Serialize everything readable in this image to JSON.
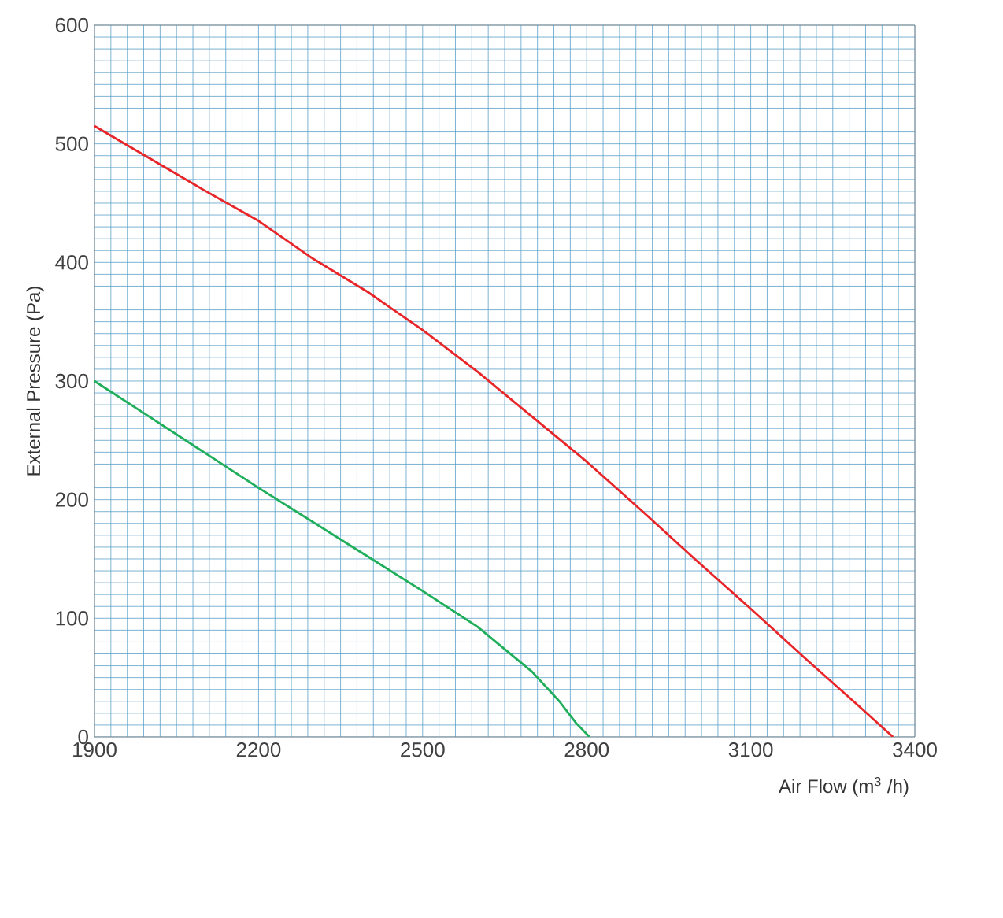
{
  "chart_data": {
    "type": "line",
    "xlabel": "Air Flow (m$^{3}$ /h)",
    "ylabel": "External Pressure (Pa)",
    "xlim": [
      1900,
      3400
    ],
    "ylim": [
      0,
      600
    ],
    "xticks": [
      1900,
      {
        "value": 1930,
        "label": null
      },
      {
        "value": 1960,
        "label": null
      },
      {
        "value": 1990,
        "label": null
      },
      {
        "value": 2020,
        "label": null
      },
      {
        "value": 2050,
        "label": null
      },
      {
        "value": 2080,
        "label": null
      },
      {
        "value": 2110,
        "label": null
      },
      {
        "value": 2140,
        "label": null
      },
      {
        "value": 2170,
        "label": null
      },
      2200,
      {
        "value": 2230,
        "label": null
      },
      {
        "value": 2260,
        "label": null
      },
      {
        "value": 2290,
        "label": null
      },
      {
        "value": 2320,
        "label": null
      },
      {
        "value": 2350,
        "label": null
      },
      {
        "value": 2380,
        "label": null
      },
      {
        "value": 2410,
        "label": null
      },
      {
        "value": 2440,
        "label": null
      },
      {
        "value": 2470,
        "label": null
      },
      2500,
      {
        "value": 2530,
        "label": null
      },
      {
        "value": 2560,
        "label": null
      },
      {
        "value": 2590,
        "label": null
      },
      {
        "value": 2620,
        "label": null
      },
      {
        "value": 2650,
        "label": null
      },
      {
        "value": 2680,
        "label": null
      },
      {
        "value": 2710,
        "label": null
      },
      {
        "value": 2740,
        "label": null
      },
      {
        "value": 2770,
        "label": null
      },
      2800,
      {
        "value": 2830,
        "label": null
      },
      {
        "value": 2860,
        "label": null
      },
      {
        "value": 2890,
        "label": null
      },
      {
        "value": 2920,
        "label": null
      },
      {
        "value": 2950,
        "label": null
      },
      {
        "value": 2980,
        "label": null
      },
      {
        "value": 3010,
        "label": null
      },
      {
        "value": 3040,
        "label": null
      },
      {
        "value": 3070,
        "label": null
      },
      3100,
      {
        "value": 3130,
        "label": null
      },
      {
        "value": 3160,
        "label": null
      },
      {
        "value": 3190,
        "label": null
      },
      {
        "value": 3220,
        "label": null
      },
      {
        "value": 3250,
        "label": null
      },
      {
        "value": 3280,
        "label": null
      },
      {
        "value": 3310,
        "label": null
      },
      {
        "value": 3340,
        "label": null
      },
      {
        "value": 3370,
        "label": null
      },
      3400
    ],
    "yticks": [
      0,
      {
        "value": 10,
        "label": null
      },
      {
        "value": 20,
        "label": null
      },
      {
        "value": 30,
        "label": null
      },
      {
        "value": 40,
        "label": null
      },
      {
        "value": 50,
        "label": null
      },
      {
        "value": 60,
        "label": null
      },
      {
        "value": 70,
        "label": null
      },
      {
        "value": 80,
        "label": null
      },
      {
        "value": 90,
        "label": null
      },
      100,
      {
        "value": 110,
        "label": null
      },
      {
        "value": 120,
        "label": null
      },
      {
        "value": 130,
        "label": null
      },
      {
        "value": 140,
        "label": null
      },
      {
        "value": 150,
        "label": null
      },
      {
        "value": 160,
        "label": null
      },
      {
        "value": 170,
        "label": null
      },
      {
        "value": 180,
        "label": null
      },
      {
        "value": 190,
        "label": null
      },
      200,
      {
        "value": 210,
        "label": null
      },
      {
        "value": 220,
        "label": null
      },
      {
        "value": 230,
        "label": null
      },
      {
        "value": 240,
        "label": null
      },
      {
        "value": 250,
        "label": null
      },
      {
        "value": 260,
        "label": null
      },
      {
        "value": 270,
        "label": null
      },
      {
        "value": 280,
        "label": null
      },
      {
        "value": 290,
        "label": null
      },
      300,
      {
        "value": 310,
        "label": null
      },
      {
        "value": 320,
        "label": null
      },
      {
        "value": 330,
        "label": null
      },
      {
        "value": 340,
        "label": null
      },
      {
        "value": 350,
        "label": null
      },
      {
        "value": 360,
        "label": null
      },
      {
        "value": 370,
        "label": null
      },
      {
        "value": 380,
        "label": null
      },
      {
        "value": 390,
        "label": null
      },
      400,
      {
        "value": 410,
        "label": null
      },
      {
        "value": 420,
        "label": null
      },
      {
        "value": 430,
        "label": null
      },
      {
        "value": 440,
        "label": null
      },
      {
        "value": 450,
        "label": null
      },
      {
        "value": 460,
        "label": null
      },
      {
        "value": 470,
        "label": null
      },
      {
        "value": 480,
        "label": null
      },
      {
        "value": 490,
        "label": null
      },
      500,
      {
        "value": 510,
        "label": null
      },
      {
        "value": 520,
        "label": null
      },
      {
        "value": 530,
        "label": null
      },
      {
        "value": 540,
        "label": null
      },
      {
        "value": 550,
        "label": null
      },
      {
        "value": 560,
        "label": null
      },
      {
        "value": 570,
        "label": null
      },
      {
        "value": 580,
        "label": null
      },
      {
        "value": 590,
        "label": null
      },
      600
    ],
    "grid": true,
    "line_style": "solid",
    "marker": "none",
    "series": [
      {
        "color": "#e8262a",
        "x": [
          1900,
          2000,
          2100,
          2200,
          2300,
          2400,
          2500,
          2600,
          2700,
          2800,
          2900,
          3000,
          3100,
          3200,
          3300,
          3360
        ],
        "values": [
          515,
          488,
          461,
          435,
          403,
          375,
          343,
          308,
          270,
          232,
          191,
          149,
          108,
          66,
          25,
          0
        ]
      },
      {
        "color": "#1fae5a",
        "x": [
          1900,
          2000,
          2100,
          2200,
          2300,
          2400,
          2500,
          2600,
          2700,
          2750,
          2780,
          2805
        ],
        "values": [
          300,
          270,
          240,
          210,
          181,
          152,
          123,
          93,
          55,
          30,
          12,
          0
        ]
      }
    ]
  }
}
